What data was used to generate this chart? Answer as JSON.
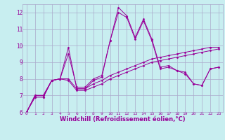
{
  "background_color": "#c8eef0",
  "grid_color": "#aaaacc",
  "line_color": "#990099",
  "xlim": [
    -0.5,
    23.5
  ],
  "ylim": [
    6,
    12.5
  ],
  "xlabel": "Windchill (Refroidissement éolien,°C)",
  "xlabel_fontsize": 6,
  "xtick_labels": [
    "0",
    "1",
    "2",
    "3",
    "4",
    "5",
    "6",
    "7",
    "8",
    "9",
    "10",
    "11",
    "12",
    "13",
    "14",
    "15",
    "16",
    "17",
    "18",
    "19",
    "20",
    "21",
    "22",
    "23"
  ],
  "ytick_labels": [
    "6",
    "7",
    "8",
    "9",
    "10",
    "11",
    "12"
  ],
  "ytick_values": [
    6,
    7,
    8,
    9,
    10,
    11,
    12
  ],
  "series": [
    [
      6.0,
      6.9,
      6.9,
      7.9,
      8.0,
      9.9,
      7.4,
      7.4,
      7.9,
      8.1,
      10.3,
      12.3,
      11.8,
      10.5,
      11.6,
      10.4,
      8.7,
      8.8,
      8.5,
      8.4,
      7.7,
      7.6,
      8.6,
      8.7
    ],
    [
      6.0,
      6.9,
      6.9,
      7.9,
      8.0,
      9.5,
      7.5,
      7.5,
      8.0,
      8.2,
      10.3,
      12.0,
      11.7,
      10.4,
      11.5,
      10.3,
      8.6,
      8.7,
      8.5,
      8.3,
      7.7,
      7.6,
      8.6,
      8.7
    ],
    [
      6.0,
      7.0,
      7.0,
      7.9,
      8.0,
      8.0,
      7.4,
      7.4,
      7.7,
      7.9,
      8.2,
      8.4,
      8.6,
      8.8,
      9.0,
      9.2,
      9.3,
      9.4,
      9.5,
      9.6,
      9.7,
      9.8,
      9.9,
      9.9
    ],
    [
      6.0,
      7.0,
      7.0,
      7.9,
      8.0,
      7.9,
      7.3,
      7.3,
      7.5,
      7.7,
      8.0,
      8.2,
      8.4,
      8.6,
      8.8,
      9.0,
      9.1,
      9.2,
      9.3,
      9.4,
      9.5,
      9.6,
      9.7,
      9.8
    ]
  ]
}
